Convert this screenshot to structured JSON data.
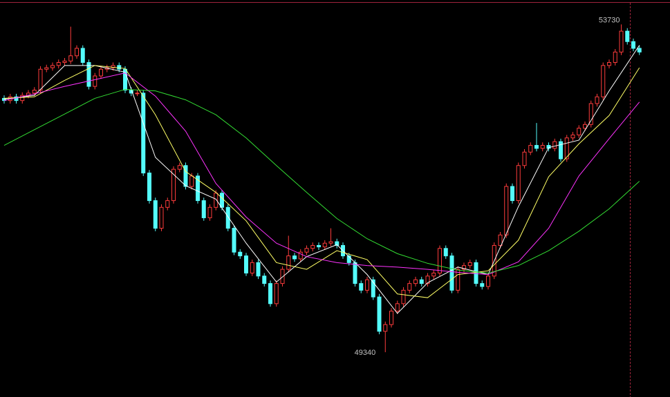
{
  "chart_data": {
    "type": "candlestick",
    "up_color": "#ff3c3c",
    "down_color": "#54fcfc",
    "ylim": [
      48740,
      54020
    ],
    "open": [
      52740,
      52710,
      52760,
      52710,
      52780,
      52810,
      52850,
      53130,
      53150,
      53180,
      53220,
      53240,
      53310,
      53410,
      53220,
      52900,
      53040,
      53130,
      53150,
      53180,
      53130,
      52850,
      52810,
      52810,
      51740,
      51370,
      51000,
      51280,
      51370,
      51790,
      51840,
      51560,
      51700,
      51370,
      51140,
      51280,
      51470,
      51280,
      51000,
      50680,
      50630,
      50400,
      50540,
      50360,
      50260,
      49990,
      50260,
      50450,
      50630,
      50590,
      50680,
      50730,
      50770,
      50750,
      50800,
      50820,
      50770,
      50630,
      50540,
      50260,
      50170,
      50310,
      50080,
      49620,
      49710,
      49890,
      49990,
      50170,
      50260,
      50310,
      50260,
      50360,
      50400,
      50730,
      50630,
      50170,
      50450,
      50500,
      50540,
      50260,
      50220,
      50360,
      50770,
      50910,
      51560,
      51370,
      51840,
      52020,
      52110,
      52070,
      52110,
      52070,
      52160,
      51930,
      52210,
      52250,
      52340,
      52390,
      52670,
      52760,
      53180,
      53220,
      53360,
      53640,
      53500,
      53410
    ],
    "high": [
      52780,
      52800,
      52800,
      52820,
      52850,
      52890,
      53170,
      53190,
      53220,
      53260,
      53280,
      53700,
      53450,
      53450,
      53260,
      53080,
      53170,
      53190,
      53220,
      53220,
      53170,
      52890,
      52850,
      52850,
      51780,
      51410,
      51320,
      51410,
      51830,
      51880,
      51880,
      51740,
      51740,
      51410,
      51320,
      51510,
      51510,
      51320,
      51040,
      50720,
      50670,
      50580,
      50580,
      50400,
      50300,
      50300,
      50490,
      50900,
      50670,
      50720,
      50770,
      50810,
      50810,
      50840,
      51000,
      50860,
      50810,
      50670,
      50580,
      50300,
      50350,
      50350,
      50120,
      49750,
      49930,
      50030,
      50210,
      50300,
      50350,
      50350,
      50400,
      50440,
      50770,
      50770,
      50670,
      50490,
      50540,
      50580,
      50580,
      50300,
      50400,
      50810,
      50950,
      51600,
      51600,
      51880,
      52060,
      52150,
      52410,
      52150,
      52150,
      52200,
      52200,
      52250,
      52290,
      52380,
      52430,
      52710,
      52800,
      53220,
      53260,
      53400,
      53730,
      53680,
      53540,
      53450
    ],
    "low": [
      52670,
      52670,
      52670,
      52670,
      52740,
      52770,
      52810,
      53090,
      53110,
      53140,
      53180,
      53200,
      53270,
      53180,
      52860,
      52860,
      53000,
      53090,
      53110,
      53090,
      52810,
      52770,
      52770,
      51700,
      51330,
      50960,
      50960,
      51240,
      51330,
      51750,
      51520,
      51520,
      51330,
      51100,
      51100,
      51240,
      51240,
      50960,
      50640,
      50590,
      50360,
      50360,
      50320,
      50220,
      49950,
      49950,
      50220,
      50410,
      50550,
      50550,
      50640,
      50690,
      50710,
      50710,
      50760,
      50730,
      50590,
      50500,
      50220,
      50130,
      50130,
      50040,
      49580,
      49340,
      49670,
      49850,
      49950,
      50130,
      50220,
      50220,
      50220,
      50320,
      50360,
      50590,
      50130,
      50130,
      50410,
      50460,
      50220,
      50180,
      50180,
      50320,
      50730,
      50870,
      51330,
      51330,
      51800,
      51980,
      52030,
      52030,
      52030,
      52030,
      51890,
      51890,
      52170,
      52210,
      52300,
      52350,
      52630,
      52720,
      53140,
      53180,
      53320,
      53460,
      53370,
      53320
    ],
    "close": [
      52710,
      52760,
      52710,
      52780,
      52810,
      52850,
      53130,
      53150,
      53180,
      53220,
      53240,
      53310,
      53410,
      53220,
      52900,
      53040,
      53130,
      53150,
      53180,
      53130,
      52850,
      52810,
      52810,
      51740,
      51370,
      51000,
      51280,
      51370,
      51790,
      51840,
      51560,
      51700,
      51370,
      51140,
      51280,
      51470,
      51280,
      51000,
      50680,
      50630,
      50400,
      50540,
      50360,
      50260,
      49990,
      50260,
      50450,
      50630,
      50590,
      50680,
      50730,
      50770,
      50750,
      50800,
      50820,
      50770,
      50630,
      50540,
      50260,
      50170,
      50310,
      50080,
      49620,
      49710,
      49890,
      49990,
      50170,
      50260,
      50310,
      50260,
      50360,
      50400,
      50730,
      50630,
      50170,
      50450,
      50500,
      50540,
      50260,
      50220,
      50360,
      50770,
      50910,
      51560,
      51370,
      51840,
      52020,
      52110,
      52070,
      52110,
      52070,
      52160,
      51930,
      52210,
      52250,
      52340,
      52390,
      52670,
      52760,
      53180,
      53220,
      53360,
      53640,
      53500,
      53410,
      53360
    ],
    "lines": [
      {
        "color": "#ffffff",
        "x": [
          0,
          5,
          10,
          15,
          20,
          25,
          30,
          35,
          40,
          45,
          50,
          55,
          60,
          65,
          70,
          75,
          80,
          85,
          90,
          95,
          100,
          105
        ],
        "values": [
          52730,
          52780,
          53180,
          53180,
          53090,
          51950,
          51570,
          51390,
          50800,
          50280,
          50620,
          50780,
          50380,
          49860,
          50270,
          50480,
          50380,
          51290,
          52080,
          52180,
          52840,
          53450
        ]
      },
      {
        "color": "#ffff66",
        "x": [
          0,
          5,
          10,
          15,
          20,
          25,
          30,
          35,
          40,
          45,
          50,
          55,
          60,
          65,
          70,
          75,
          80,
          85,
          90,
          95,
          100,
          105
        ],
        "values": [
          52740,
          52760,
          52980,
          53180,
          53140,
          52520,
          51760,
          51480,
          51100,
          50540,
          50450,
          50700,
          50580,
          50120,
          50070,
          50380,
          50430,
          50840,
          51690,
          52130,
          52510,
          53150
        ]
      },
      {
        "color": "#ff33ff",
        "x": [
          0,
          5,
          10,
          15,
          20,
          25,
          30,
          35,
          40,
          45,
          50,
          55,
          60,
          65,
          70,
          75,
          80,
          85,
          90,
          95,
          100,
          105
        ],
        "values": [
          52710,
          52800,
          52900,
          52990,
          53080,
          52770,
          52300,
          51600,
          51150,
          50800,
          50620,
          50540,
          50500,
          50480,
          50450,
          50410,
          50380,
          50550,
          51000,
          51700,
          52200,
          52690
        ]
      },
      {
        "color": "#33dd33",
        "x": [
          0,
          5,
          10,
          15,
          20,
          25,
          30,
          35,
          40,
          45,
          50,
          55,
          60,
          65,
          70,
          75,
          80,
          85,
          90,
          95,
          100,
          105
        ],
        "values": [
          52110,
          52320,
          52530,
          52740,
          52860,
          52840,
          52720,
          52520,
          52210,
          51840,
          51480,
          51130,
          50860,
          50660,
          50530,
          50440,
          50400,
          50500,
          50700,
          50960,
          51260,
          51630
        ]
      }
    ]
  }
}
